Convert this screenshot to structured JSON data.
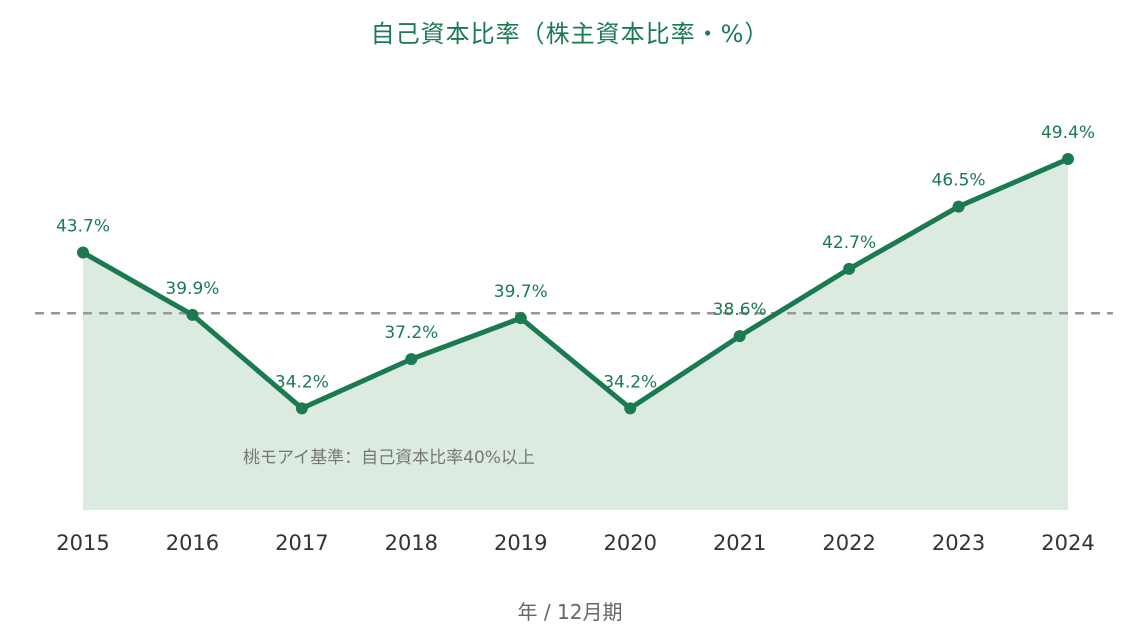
{
  "chart_data": {
    "type": "area",
    "title": "自己資本比率（株主資本比率・%）",
    "xlabel": "年 / 12月期",
    "ylabel": "",
    "categories": [
      "2015",
      "2016",
      "2017",
      "2018",
      "2019",
      "2020",
      "2021",
      "2022",
      "2023",
      "2024"
    ],
    "series": [
      {
        "values": [
          43.7,
          39.9,
          34.2,
          37.2,
          39.7,
          34.2,
          38.6,
          42.7,
          46.5,
          49.4
        ],
        "labels": [
          "43.7%",
          "39.9%",
          "34.2%",
          "37.2%",
          "39.7%",
          "34.2%",
          "38.6%",
          "42.7%",
          "46.5%",
          "49.4%"
        ]
      }
    ],
    "reference_line": {
      "value": 40,
      "label": "桃モアイ基準：自己資本比率40%以上",
      "style": "dashed"
    },
    "ylim": [
      28,
      53
    ],
    "grid": false,
    "colors": {
      "line": "#1b7a4f",
      "fill": "#dcebe0",
      "reference": "#999999"
    }
  }
}
